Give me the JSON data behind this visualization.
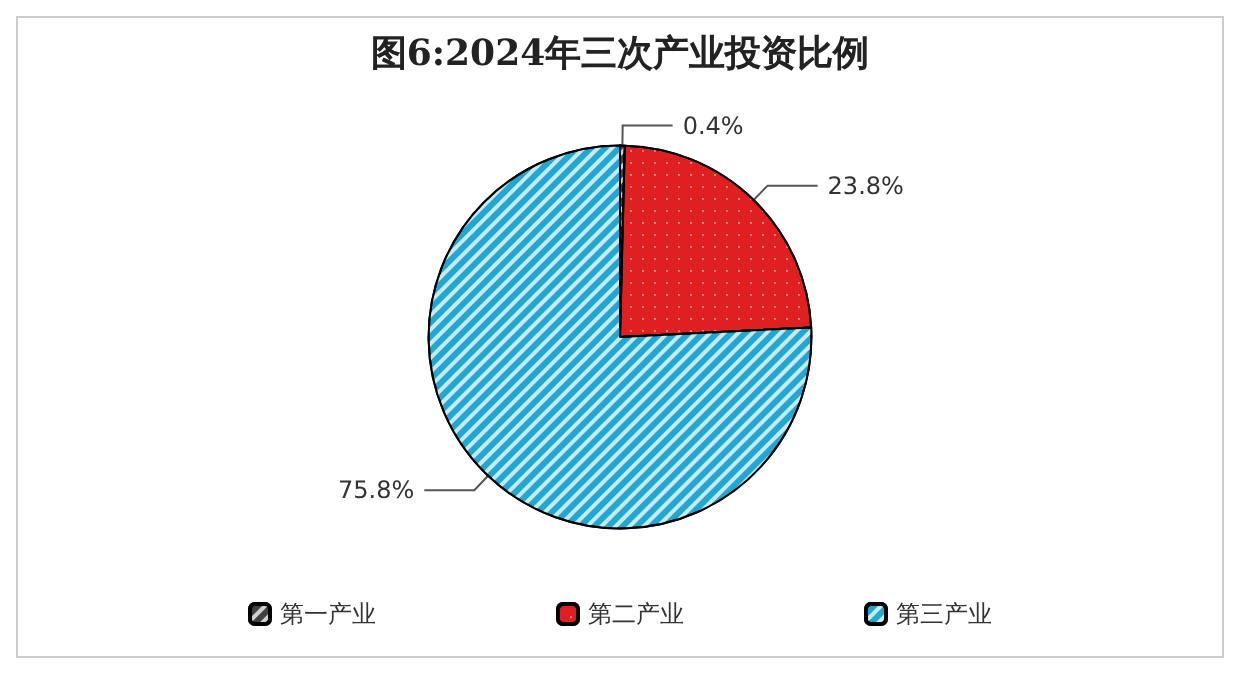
{
  "chart_data": {
    "type": "pie",
    "title": "图6:2024年三次产业投资比例",
    "categories": [
      "第一产业",
      "第二产业",
      "第三产业"
    ],
    "values": [
      0.4,
      23.8,
      75.8
    ],
    "colors": [
      "#404040",
      "#e02020",
      "#20a8d0"
    ],
    "value_labels": [
      "0.4%",
      "23.8%",
      "75.8%"
    ],
    "legend": "bottom"
  }
}
